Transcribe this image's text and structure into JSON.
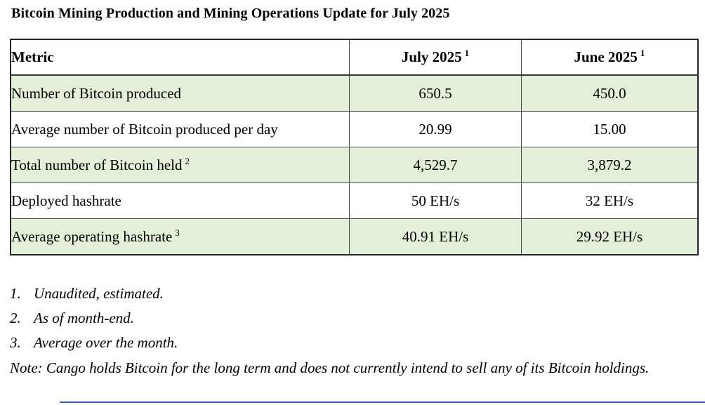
{
  "title": "Bitcoin Mining Production and Mining Operations Update for July 2025",
  "table": {
    "columns": [
      {
        "label": "Metric",
        "sup": ""
      },
      {
        "label": "July 2025",
        "sup": "1"
      },
      {
        "label": "June 2025",
        "sup": "1"
      }
    ],
    "rows": [
      {
        "metric": "Number of Bitcoin produced",
        "sup": "",
        "july": "650.5",
        "june": "450.0"
      },
      {
        "metric": "Average number of Bitcoin produced per day",
        "sup": "",
        "july": "20.99",
        "june": "15.00"
      },
      {
        "metric": "Total number of Bitcoin held",
        "sup": "2",
        "july": "4,529.7",
        "june": "3,879.2"
      },
      {
        "metric": "Deployed hashrate",
        "sup": "",
        "july": "50 EH/s",
        "june": "32 EH/s"
      },
      {
        "metric": "Average operating hashrate",
        "sup": "3",
        "july": "40.91 EH/s",
        "june": "29.92 EH/s"
      }
    ]
  },
  "footnotes": [
    {
      "num": "1.",
      "text": "Unaudited, estimated."
    },
    {
      "num": "2.",
      "text": "As of month-end."
    },
    {
      "num": "3.",
      "text": "Average over the month."
    }
  ],
  "note": "Note: Cango holds Bitcoin for the long term and does not currently intend to sell any of its Bitcoin holdings.",
  "colors": {
    "row_highlight_green": "#e2efd9",
    "table_border": "#262626",
    "bottom_line_blue": "#3563af"
  }
}
